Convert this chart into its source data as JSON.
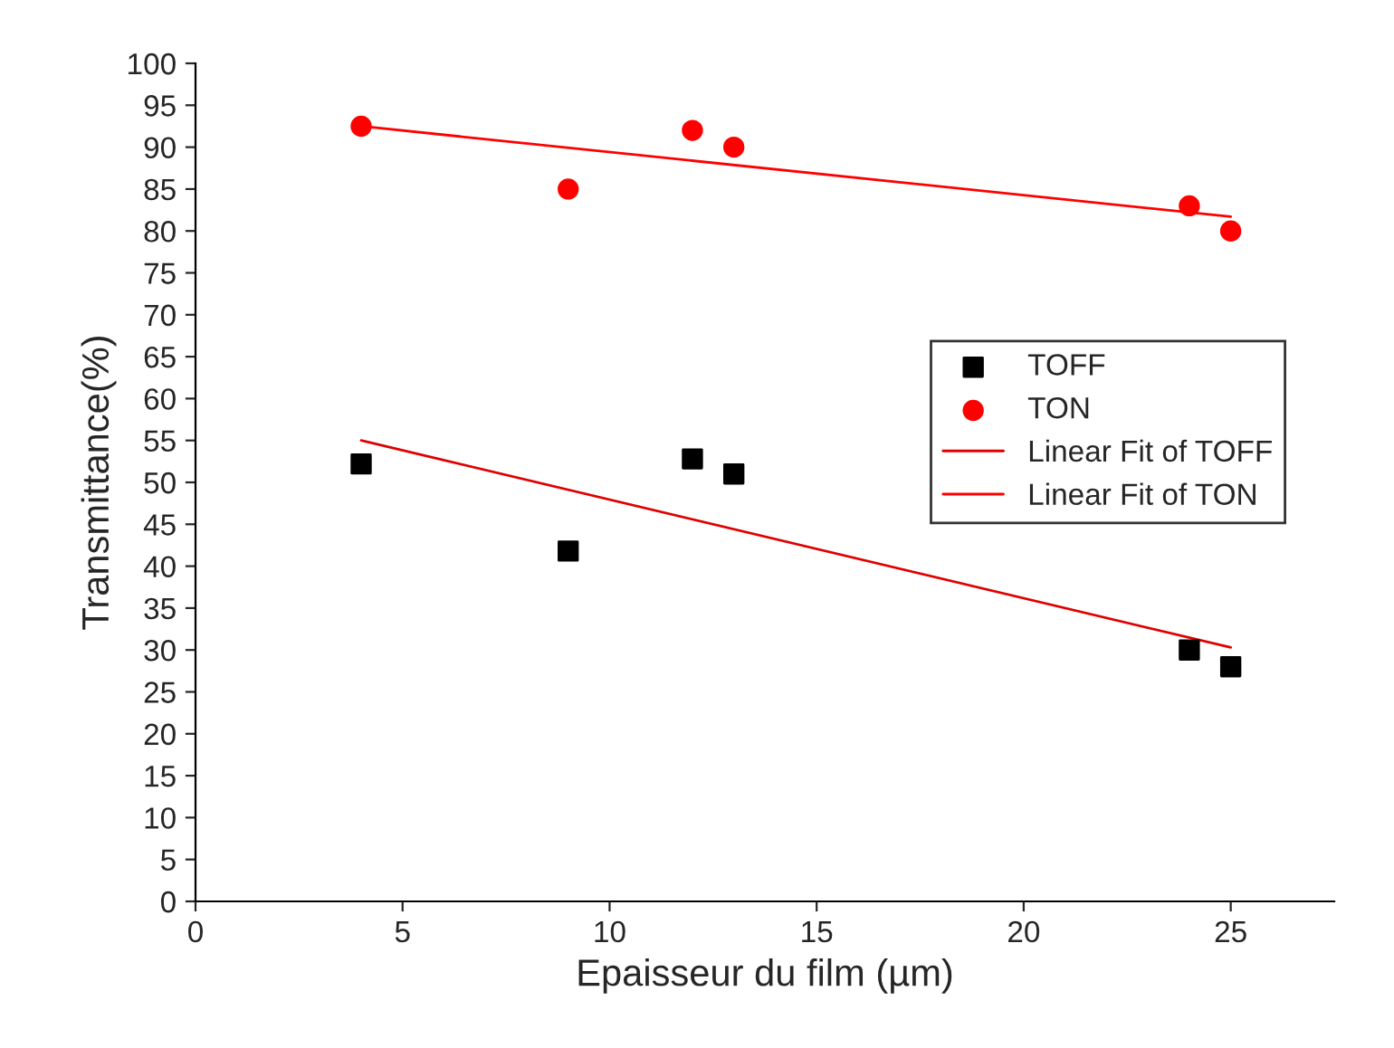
{
  "chart_data": {
    "type": "scatter",
    "xlabel": "Epaisseur du film (µm)",
    "ylabel": "Transmittance(%)",
    "xlim": [
      0,
      27.5
    ],
    "xticks": [
      0,
      5,
      10,
      15,
      20,
      25
    ],
    "ylim": [
      0,
      100
    ],
    "yticks": [
      0,
      5,
      10,
      15,
      20,
      25,
      30,
      35,
      40,
      45,
      50,
      55,
      60,
      65,
      70,
      75,
      80,
      85,
      90,
      95,
      100
    ],
    "grid": false,
    "legend": "right",
    "series": [
      {
        "name": "TOFF",
        "type": "scatter",
        "marker": "square",
        "color": "#000000",
        "x": [
          4,
          9,
          12,
          13,
          24,
          25
        ],
        "values": [
          52.2,
          41.8,
          52.8,
          51,
          30,
          28
        ]
      },
      {
        "name": "TON",
        "type": "scatter",
        "marker": "circle",
        "color": "#ff0000",
        "x": [
          4,
          9,
          12,
          13,
          24,
          25
        ],
        "values": [
          92.5,
          85,
          92,
          90,
          83,
          80
        ]
      },
      {
        "name": "Linear Fit of TOFF",
        "type": "line",
        "marker": "none",
        "color": "#e00000",
        "x": [
          4,
          25
        ],
        "values": [
          55,
          30.3
        ]
      },
      {
        "name": "Linear Fit of TON",
        "type": "line",
        "marker": "none",
        "color": "#ff0000",
        "x": [
          4,
          25
        ],
        "values": [
          92.5,
          81.7
        ]
      }
    ]
  }
}
